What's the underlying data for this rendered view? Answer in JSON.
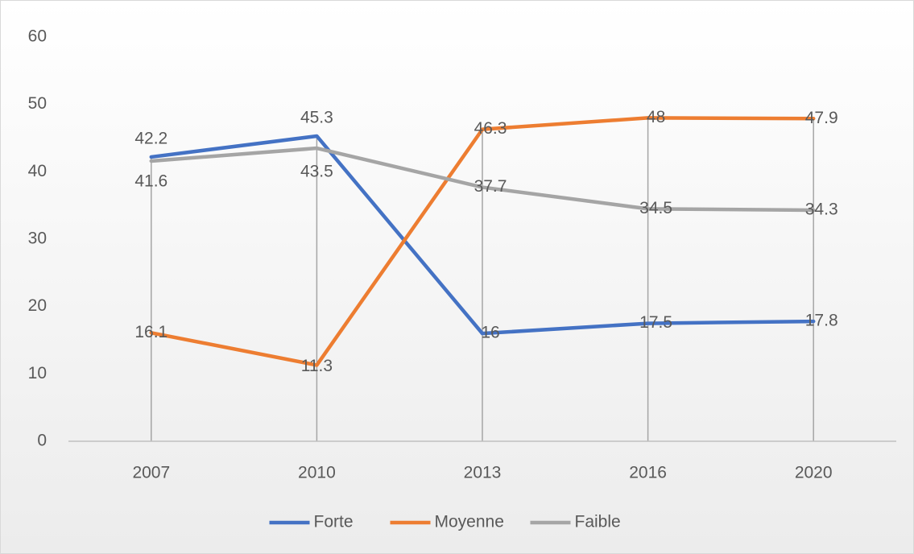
{
  "chart_data": {
    "type": "line",
    "categories": [
      "2007",
      "2010",
      "2013",
      "2016",
      "2020"
    ],
    "series": [
      {
        "name": "Forte",
        "color": "#4472c4",
        "values": [
          42.2,
          45.3,
          16,
          17.5,
          17.8
        ]
      },
      {
        "name": "Moyenne",
        "color": "#ed7d31",
        "values": [
          16.1,
          11.3,
          46.3,
          48,
          47.9
        ]
      },
      {
        "name": "Faible",
        "color": "#a5a5a5",
        "values": [
          41.6,
          43.5,
          37.7,
          34.5,
          34.3
        ]
      }
    ],
    "ylim": [
      0,
      60
    ],
    "yticks": [
      0,
      10,
      20,
      30,
      40,
      50,
      60
    ],
    "grid": false,
    "legend": "bottom",
    "drop_lines": true
  }
}
